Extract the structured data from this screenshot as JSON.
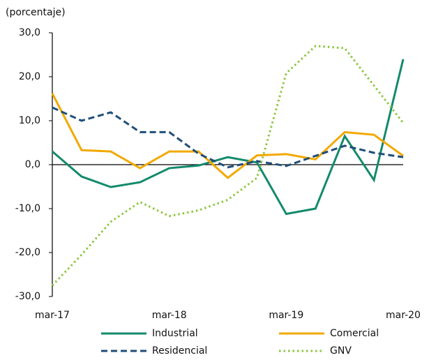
{
  "chart_data": {
    "type": "line",
    "y_label": "(porcentaje)",
    "categories": [
      "mar-17",
      null,
      null,
      null,
      "mar-18",
      null,
      null,
      null,
      "mar-19",
      null,
      null,
      null,
      "mar-20"
    ],
    "series": [
      {
        "name": "Industrial",
        "color": "#138a6b",
        "dash": "solid",
        "values": [
          3.0,
          -2.7,
          -5.1,
          -4.0,
          -0.8,
          -0.2,
          1.7,
          0.5,
          -11.2,
          -10.0,
          6.5,
          -3.5,
          24.0
        ]
      },
      {
        "name": "Comercial",
        "color": "#f2a900",
        "dash": "solid",
        "values": [
          16.2,
          3.3,
          3.0,
          -0.8,
          3.0,
          3.0,
          -3.0,
          2.1,
          2.4,
          1.2,
          7.4,
          6.8,
          2.0
        ]
      },
      {
        "name": "Residencial",
        "color": "#1f4e79",
        "dash": "dashed",
        "values": [
          13.0,
          10.0,
          11.9,
          7.4,
          7.4,
          2.5,
          -0.6,
          0.8,
          -0.3,
          2.0,
          4.3,
          2.7,
          1.7
        ]
      },
      {
        "name": "GNV",
        "color": "#8cc63f",
        "dash": "dotted",
        "values": [
          -27.5,
          -20.5,
          -13.0,
          -8.5,
          -11.7,
          -10.4,
          -8.0,
          -3.0,
          20.8,
          27.0,
          26.5,
          18.0,
          9.5
        ]
      }
    ],
    "ylim": [
      -30,
      30
    ],
    "yticks": [
      {
        "value": -30,
        "label": "-30,0"
      },
      {
        "value": -20,
        "label": "-20,0"
      },
      {
        "value": -10,
        "label": "-10,0"
      },
      {
        "value": 0,
        "label": "0,0"
      },
      {
        "value": 10,
        "label": "10,0"
      },
      {
        "value": 20,
        "label": "20,0"
      },
      {
        "value": 30,
        "label": "30,0"
      }
    ]
  }
}
